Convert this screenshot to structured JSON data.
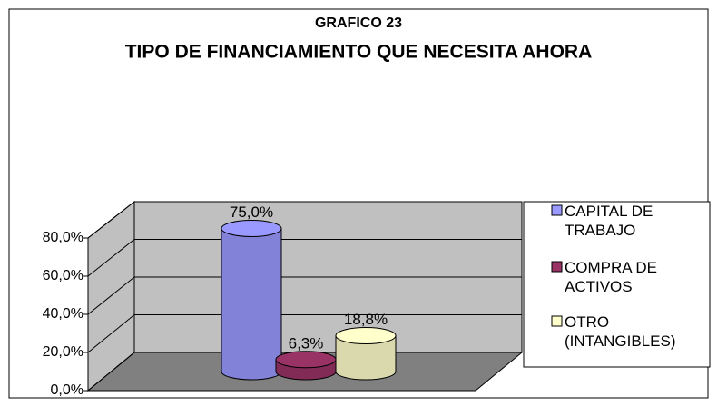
{
  "chart_data": {
    "type": "bar3d",
    "title": "GRAFICO 23",
    "subtitle": "TIPO DE FINANCIAMIENTO QUE NECESITA AHORA",
    "categories": [
      null,
      null,
      null
    ],
    "series": [
      {
        "name": "CAPITAL DE TRABAJO",
        "color": "#9999ff"
      },
      {
        "name": "COMPRA DE ACTIVOS",
        "color": "#993366"
      },
      {
        "name": "OTRO (INTANGIBLES)",
        "color": "#ffffcc"
      }
    ],
    "values": [
      75,
      6.3,
      18.8
    ],
    "value_labels": [
      "75,0%",
      "6,3%",
      "18,8%"
    ],
    "ylim": [
      0,
      80
    ],
    "yticks": [
      {
        "value": 0,
        "label": "0,0%"
      },
      {
        "value": 20,
        "label": "20,0%"
      },
      {
        "value": 40,
        "label": "40,0%"
      },
      {
        "value": 60,
        "label": "60,0%"
      },
      {
        "value": 80,
        "label": "80,0%"
      }
    ],
    "grid": true,
    "legend": "right"
  }
}
